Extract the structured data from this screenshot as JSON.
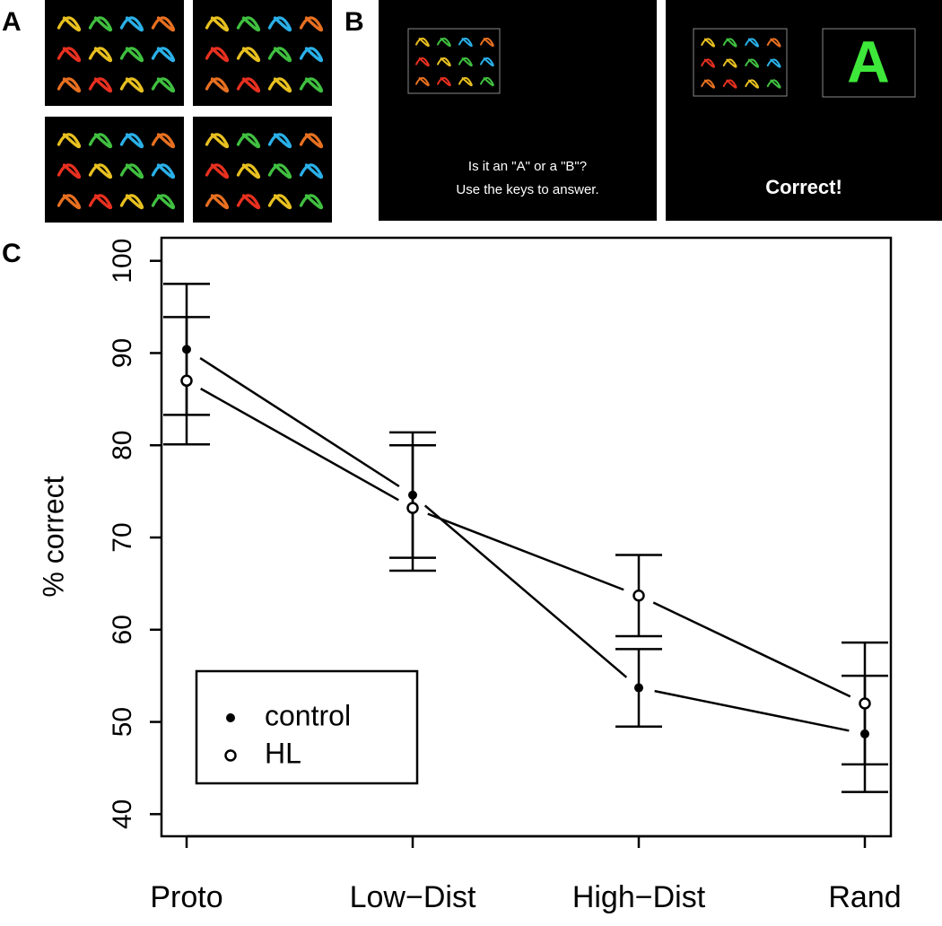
{
  "panel_labels": [
    "A",
    "B",
    "C"
  ],
  "screens": {
    "prompt": [
      "Is it an \"A\" or a \"B\"?",
      "Use the keys to answer."
    ],
    "letter": "A",
    "feedback": "Correct!"
  },
  "chart_data": {
    "type": "line",
    "ylabel": "% correct",
    "categories": [
      "Proto",
      "Low−Dist",
      "High−Dist",
      "Rand"
    ],
    "series": [
      {
        "name": "control",
        "marker": "filled",
        "color": "#000000",
        "values": [
          90.4,
          74.6,
          53.7,
          48.7
        ],
        "errors": [
          7.1,
          6.8,
          4.2,
          6.3
        ]
      },
      {
        "name": "HL",
        "marker": "open",
        "color": "#000000",
        "values": [
          87.0,
          73.2,
          63.7,
          52.0
        ],
        "errors": [
          6.9,
          6.8,
          4.4,
          6.6
        ]
      }
    ],
    "ylim": [
      37.6,
      102.5
    ],
    "yticks": [
      40,
      50,
      60,
      70,
      80,
      90,
      100
    ],
    "legend": "bottom-left"
  }
}
